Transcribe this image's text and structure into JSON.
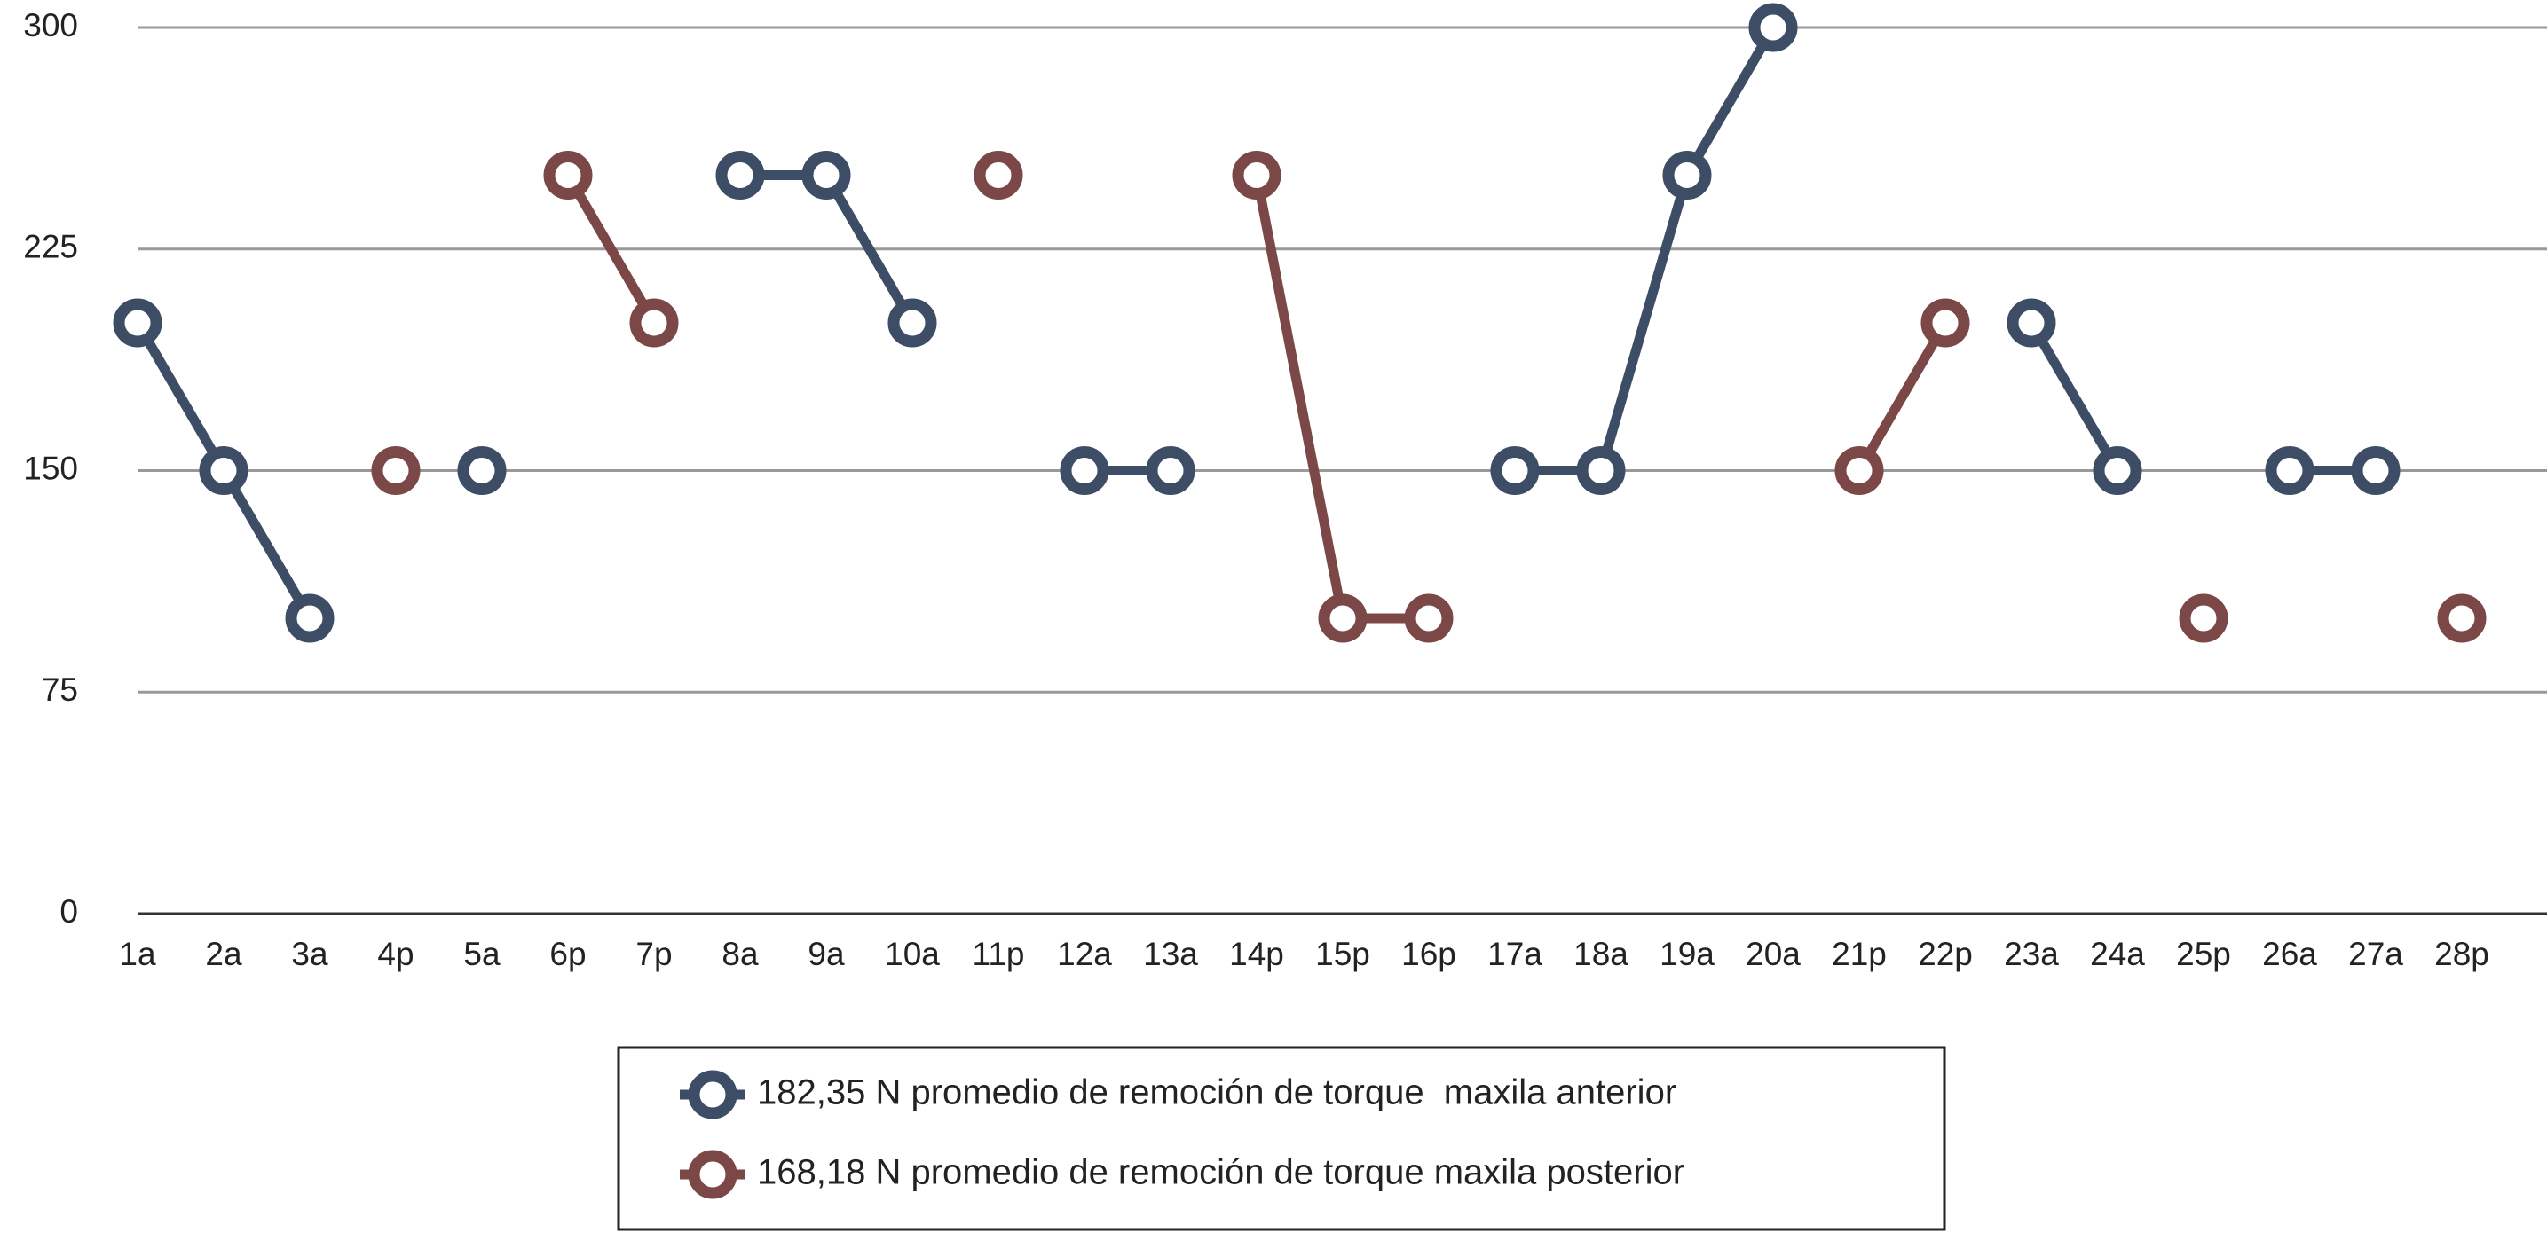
{
  "chart_data": {
    "type": "line",
    "categories": [
      "1a",
      "2a",
      "3a",
      "4p",
      "5a",
      "6p",
      "7p",
      "8a",
      "9a",
      "10a",
      "11p",
      "12a",
      "13a",
      "14p",
      "15p",
      "16p",
      "17a",
      "18a",
      "19a",
      "20a",
      "21p",
      "22p",
      "23a",
      "24a",
      "25p",
      "26a",
      "27a",
      "28p"
    ],
    "series": [
      {
        "name": "182,35 N promedio de remoción de torque  maxila anterior",
        "color": "#3e4d66",
        "values": [
          200,
          150,
          100,
          null,
          150,
          null,
          null,
          250,
          250,
          200,
          null,
          150,
          150,
          null,
          null,
          null,
          150,
          150,
          250,
          300,
          null,
          null,
          200,
          150,
          null,
          150,
          150,
          null
        ]
      },
      {
        "name": "168,18 N promedio de remoción de torque maxila posterior",
        "color": "#7b4747",
        "values": [
          null,
          null,
          null,
          150,
          null,
          250,
          200,
          null,
          null,
          null,
          250,
          null,
          null,
          250,
          100,
          100,
          null,
          null,
          null,
          null,
          150,
          200,
          null,
          null,
          100,
          null,
          null,
          100
        ]
      }
    ],
    "ylim": [
      0,
      300
    ],
    "yticks": [
      0,
      75,
      150,
      225,
      300
    ],
    "grid": true
  }
}
